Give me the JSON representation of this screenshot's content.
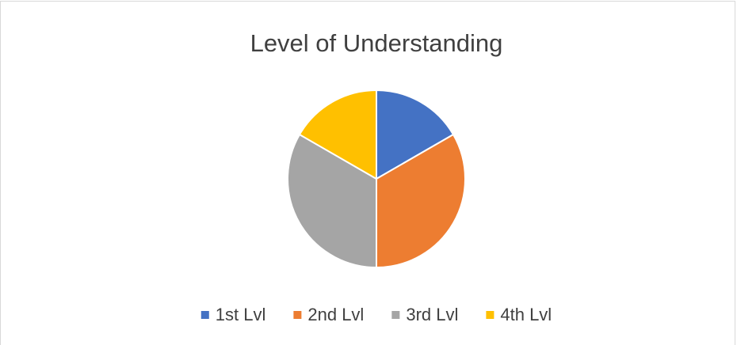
{
  "chart_data": {
    "type": "pie",
    "title": "Level of Understanding",
    "categories": [
      "1st Lvl",
      "2nd Lvl",
      "3rd Lvl",
      "4th Lvl"
    ],
    "values": [
      1,
      2,
      2,
      1
    ],
    "colors": [
      "#4472c4",
      "#ed7d31",
      "#a5a5a5",
      "#ffc000"
    ],
    "legend": "bottom"
  }
}
